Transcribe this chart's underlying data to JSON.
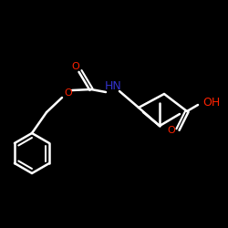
{
  "background": "#000000",
  "bond_color": "#ffffff",
  "O_color": "#ff2200",
  "N_color": "#3333cc",
  "lw": 1.8,
  "figsize": [
    2.5,
    2.5
  ],
  "dpi": 100,
  "xlim": [
    0,
    250
  ],
  "ylim": [
    0,
    250
  ]
}
